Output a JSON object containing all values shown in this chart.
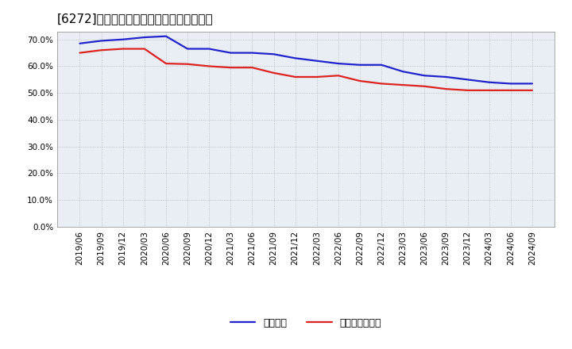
{
  "title": "[6272]　固定比率、固定長期適合率の推移",
  "x_labels": [
    "2019/06",
    "2019/09",
    "2019/12",
    "2020/03",
    "2020/06",
    "2020/09",
    "2020/12",
    "2021/03",
    "2021/06",
    "2021/09",
    "2021/12",
    "2022/03",
    "2022/06",
    "2022/09",
    "2022/12",
    "2023/03",
    "2023/06",
    "2023/09",
    "2023/12",
    "2024/03",
    "2024/06",
    "2024/09"
  ],
  "fixed_ratio": [
    68.5,
    69.5,
    70.0,
    70.8,
    71.2,
    66.5,
    66.5,
    65.0,
    65.0,
    64.5,
    63.0,
    62.0,
    61.0,
    60.5,
    60.5,
    58.0,
    56.5,
    56.0,
    55.0,
    54.0,
    53.5,
    53.5
  ],
  "fixed_long_ratio": [
    65.0,
    66.0,
    66.5,
    66.5,
    61.0,
    60.8,
    60.0,
    59.5,
    59.5,
    57.5,
    56.0,
    56.0,
    56.5,
    54.5,
    53.5,
    53.0,
    52.5,
    51.5,
    51.0,
    51.0,
    51.0,
    51.0
  ],
  "fixed_ratio_color": "#2222CC",
  "fixed_long_ratio_color": "#DD2222",
  "ylim_max": 73,
  "yticks": [
    0.0,
    10.0,
    20.0,
    30.0,
    40.0,
    50.0,
    60.0,
    70.0
  ],
  "bg_color": "#FFFFFF",
  "plot_bg_color": "#E8EEF4",
  "grid_color": "#AAAAAA",
  "legend_fixed": "固定比率",
  "legend_fixed_long": "固定長期適合率",
  "line_width": 1.6,
  "title_fontsize": 11,
  "tick_fontsize": 7.5,
  "legend_fontsize": 9
}
